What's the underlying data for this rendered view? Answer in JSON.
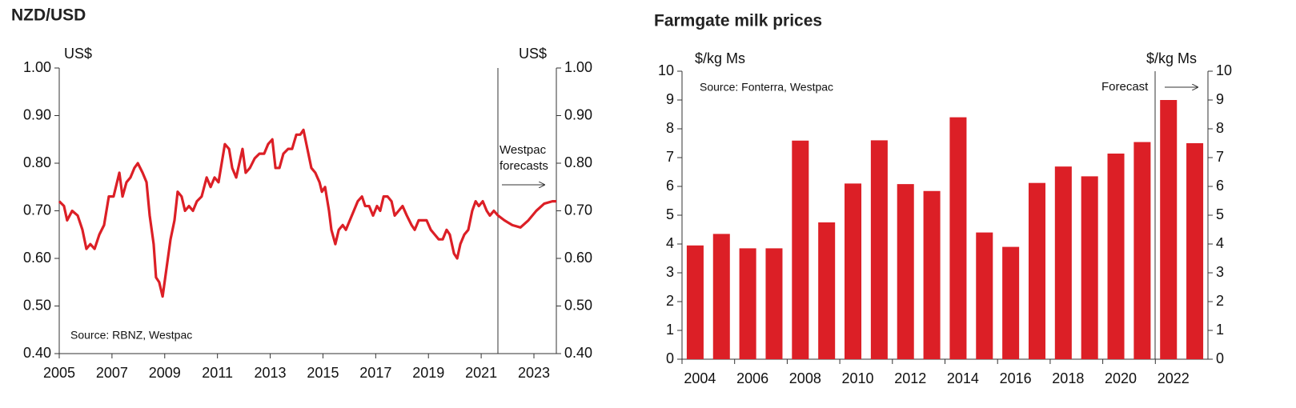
{
  "chart_data": [
    {
      "type": "line",
      "title": "NZD/USD",
      "y_label": "US$",
      "y2_label": "US$",
      "annotations": [
        "Westpac",
        "forecasts"
      ],
      "source": "Source: RBNZ, Westpac",
      "xlim": [
        2005,
        2023.85
      ],
      "xticks": [
        2005,
        2007,
        2009,
        2011,
        2013,
        2015,
        2017,
        2019,
        2021,
        2023
      ],
      "ylim": [
        0.4,
        1.0
      ],
      "yticks": [
        {
          "value": 0.4,
          "label": "0.40"
        },
        {
          "value": 0.5,
          "label": "0.50"
        },
        {
          "value": 0.6,
          "label": "0.60"
        },
        {
          "value": 0.7,
          "label": "0.70"
        },
        {
          "value": 0.8,
          "label": "0.80"
        },
        {
          "value": 0.9,
          "label": "0.90"
        },
        {
          "value": 1.0,
          "label": "1.00"
        }
      ],
      "y2lim": [
        0.4,
        1.0
      ],
      "y2ticks": [
        {
          "value": 0.4,
          "label": "0.40"
        },
        {
          "value": 0.5,
          "label": "0.50"
        },
        {
          "value": 0.6,
          "label": "0.60"
        },
        {
          "value": 0.7,
          "label": "0.70"
        },
        {
          "value": 0.8,
          "label": "0.80"
        },
        {
          "value": 0.9,
          "label": "0.90"
        },
        {
          "value": 1.0,
          "label": "1.00"
        }
      ],
      "x": [
        2005.0,
        2005.18,
        2005.3,
        2005.49,
        2005.7,
        2005.88,
        2006.03,
        2006.18,
        2006.34,
        2006.52,
        2006.7,
        2006.88,
        2007.06,
        2007.28,
        2007.4,
        2007.55,
        2007.7,
        2007.85,
        2007.98,
        2008.16,
        2008.31,
        2008.43,
        2008.58,
        2008.67,
        2008.79,
        2008.92,
        2009.07,
        2009.22,
        2009.37,
        2009.49,
        2009.64,
        2009.77,
        2009.92,
        2010.07,
        2010.22,
        2010.4,
        2010.59,
        2010.74,
        2010.89,
        2011.04,
        2011.16,
        2011.28,
        2011.44,
        2011.56,
        2011.71,
        2011.83,
        2011.95,
        2012.07,
        2012.23,
        2012.41,
        2012.59,
        2012.77,
        2012.92,
        2013.08,
        2013.2,
        2013.35,
        2013.5,
        2013.68,
        2013.83,
        2013.99,
        2014.14,
        2014.26,
        2014.41,
        2014.56,
        2014.71,
        2014.87,
        2014.96,
        2015.08,
        2015.23,
        2015.32,
        2015.47,
        2015.6,
        2015.75,
        2015.87,
        2016.02,
        2016.17,
        2016.32,
        2016.48,
        2016.6,
        2016.75,
        2016.9,
        2017.05,
        2017.17,
        2017.3,
        2017.45,
        2017.6,
        2017.72,
        2017.87,
        2018.02,
        2018.18,
        2018.36,
        2018.48,
        2018.63,
        2018.78,
        2018.93,
        2019.09,
        2019.24,
        2019.39,
        2019.54,
        2019.69,
        2019.81,
        2019.97,
        2020.09,
        2020.21,
        2020.36,
        2020.51,
        2020.66,
        2020.79,
        2020.91,
        2021.06,
        2021.21,
        2021.33,
        2021.48,
        2021.64,
        2021.88,
        2022.18,
        2022.49,
        2022.79,
        2023.09,
        2023.39,
        2023.7,
        2023.85
      ],
      "series": [
        {
          "color": "#dc1f26",
          "values": [
            0.72,
            0.71,
            0.68,
            0.7,
            0.69,
            0.66,
            0.62,
            0.63,
            0.62,
            0.65,
            0.67,
            0.73,
            0.73,
            0.78,
            0.73,
            0.76,
            0.77,
            0.79,
            0.8,
            0.78,
            0.76,
            0.69,
            0.63,
            0.56,
            0.55,
            0.52,
            0.58,
            0.64,
            0.68,
            0.74,
            0.73,
            0.7,
            0.71,
            0.7,
            0.72,
            0.73,
            0.77,
            0.75,
            0.77,
            0.76,
            0.8,
            0.84,
            0.83,
            0.79,
            0.77,
            0.8,
            0.83,
            0.78,
            0.79,
            0.81,
            0.82,
            0.82,
            0.84,
            0.85,
            0.79,
            0.79,
            0.82,
            0.83,
            0.83,
            0.86,
            0.86,
            0.87,
            0.83,
            0.79,
            0.78,
            0.76,
            0.74,
            0.75,
            0.7,
            0.66,
            0.63,
            0.66,
            0.67,
            0.66,
            0.68,
            0.7,
            0.72,
            0.73,
            0.71,
            0.71,
            0.69,
            0.71,
            0.7,
            0.73,
            0.73,
            0.72,
            0.69,
            0.7,
            0.71,
            0.69,
            0.67,
            0.66,
            0.68,
            0.68,
            0.68,
            0.66,
            0.65,
            0.64,
            0.64,
            0.66,
            0.65,
            0.61,
            0.6,
            0.63,
            0.65,
            0.66,
            0.7,
            0.72,
            0.71,
            0.72,
            0.7,
            0.69,
            0.7,
            0.69,
            0.68,
            0.67,
            0.665,
            0.68,
            0.7,
            0.715,
            0.72,
            0.72
          ]
        }
      ]
    },
    {
      "type": "bar",
      "title": "Farmgate milk prices",
      "y_label": "$/kg Ms",
      "y2_label": "$/kg Ms",
      "annotations": [
        "Forecast"
      ],
      "source": "Source: Fonterra, Westpac",
      "categories": [
        "2004",
        null,
        "2006",
        null,
        "2008",
        null,
        "2010",
        null,
        "2012",
        null,
        "2014",
        null,
        "2016",
        null,
        "2018",
        null,
        "2020",
        null,
        "2022",
        null
      ],
      "values": [
        3.95,
        4.35,
        3.85,
        3.85,
        7.59,
        4.75,
        6.1,
        7.6,
        6.08,
        5.84,
        8.4,
        4.4,
        3.9,
        6.12,
        6.69,
        6.35,
        7.14,
        7.54,
        9.0,
        7.5
      ],
      "color": "#dc1f26",
      "ylim": [
        0,
        10
      ],
      "yticks": [
        0,
        1,
        2,
        3,
        4,
        5,
        6,
        7,
        8,
        9,
        10
      ],
      "y2lim": [
        0,
        10
      ],
      "y2ticks": [
        0,
        1,
        2,
        3,
        4,
        5,
        6,
        7,
        8,
        9,
        10
      ]
    }
  ]
}
